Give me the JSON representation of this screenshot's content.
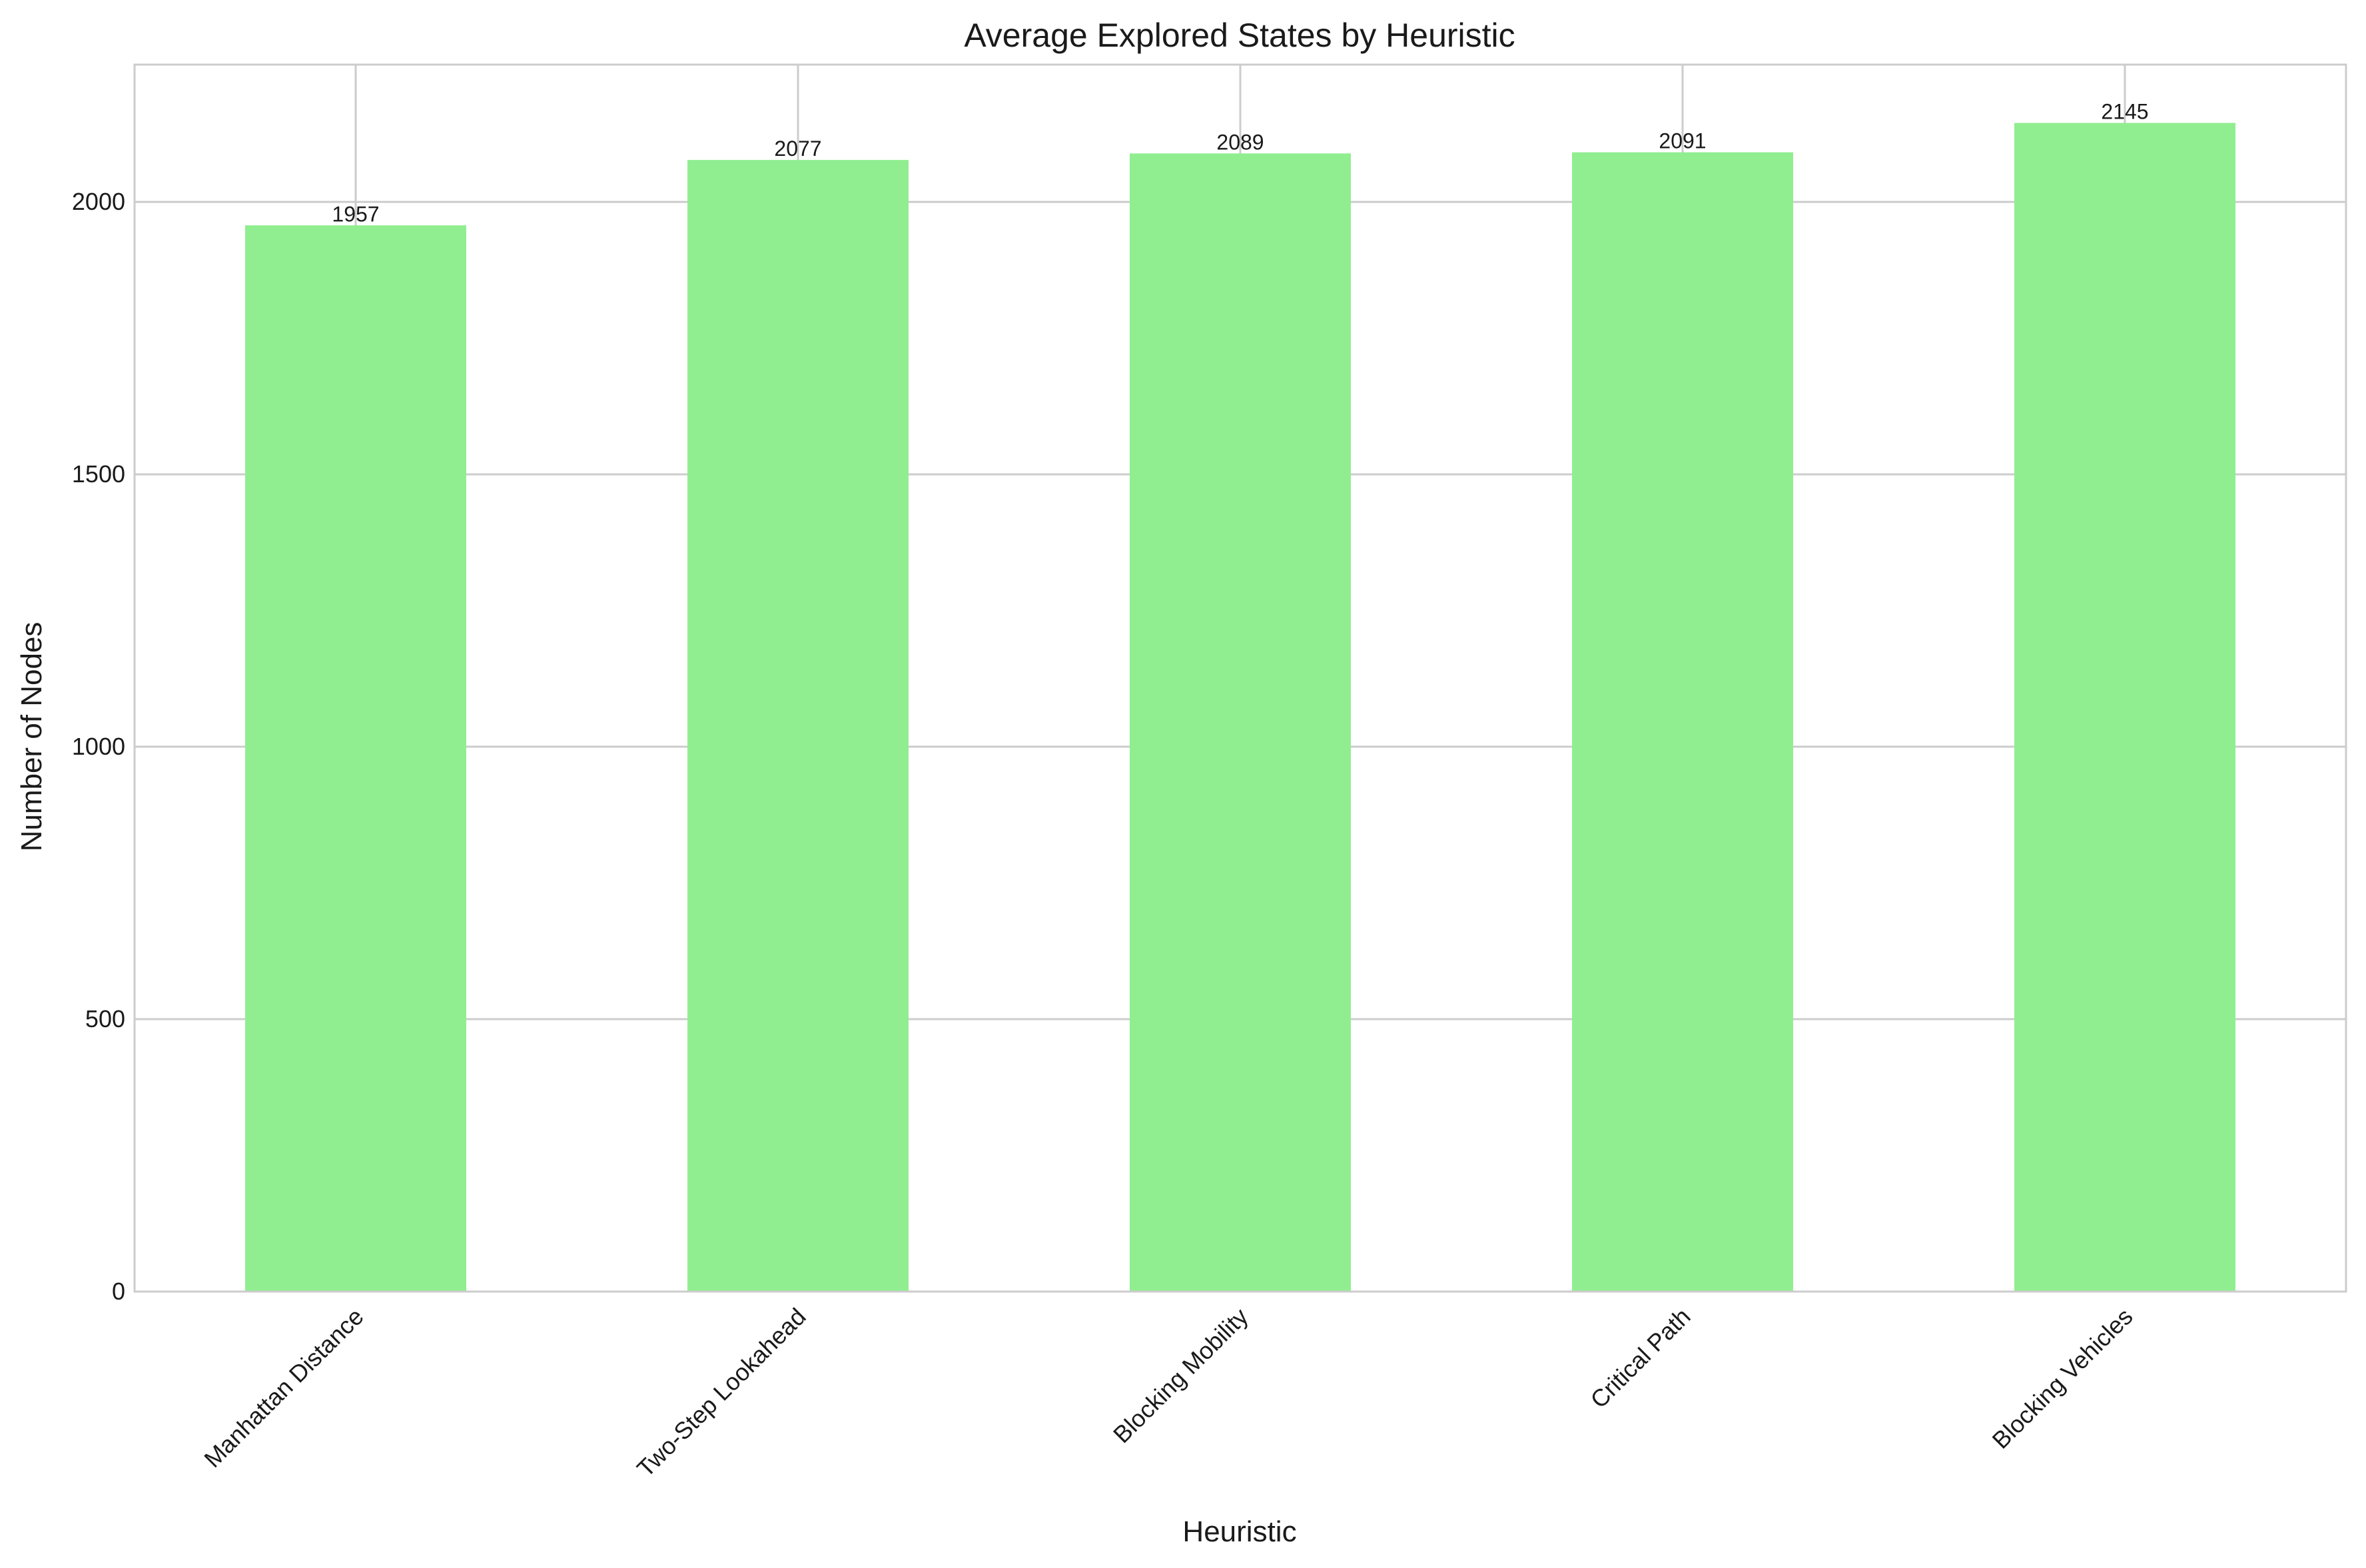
{
  "chart_data": {
    "type": "bar",
    "title": "Average Explored States by Heuristic",
    "xlabel": "Heuristic",
    "ylabel": "Number of Nodes",
    "categories": [
      "Manhattan Distance",
      "Two-Step Lookahead",
      "Blocking Mobility",
      "Critical Path",
      "Blocking Vehicles"
    ],
    "values": [
      1957,
      2077,
      2089,
      2091,
      2145
    ],
    "data_labels": [
      "1957",
      "2077",
      "2089",
      "2091",
      "2145"
    ],
    "ylim": [
      0,
      2252
    ],
    "yticks": [
      0,
      500,
      1000,
      1500,
      2000
    ],
    "ytick_labels": [
      "0",
      "500",
      "1000",
      "1500",
      "2000"
    ],
    "grid": true,
    "legend": "none",
    "colors": {
      "bar": "#90ee90",
      "grid": "#cccccc",
      "spine": "#cccccc",
      "text": "#1a1a1a"
    }
  }
}
